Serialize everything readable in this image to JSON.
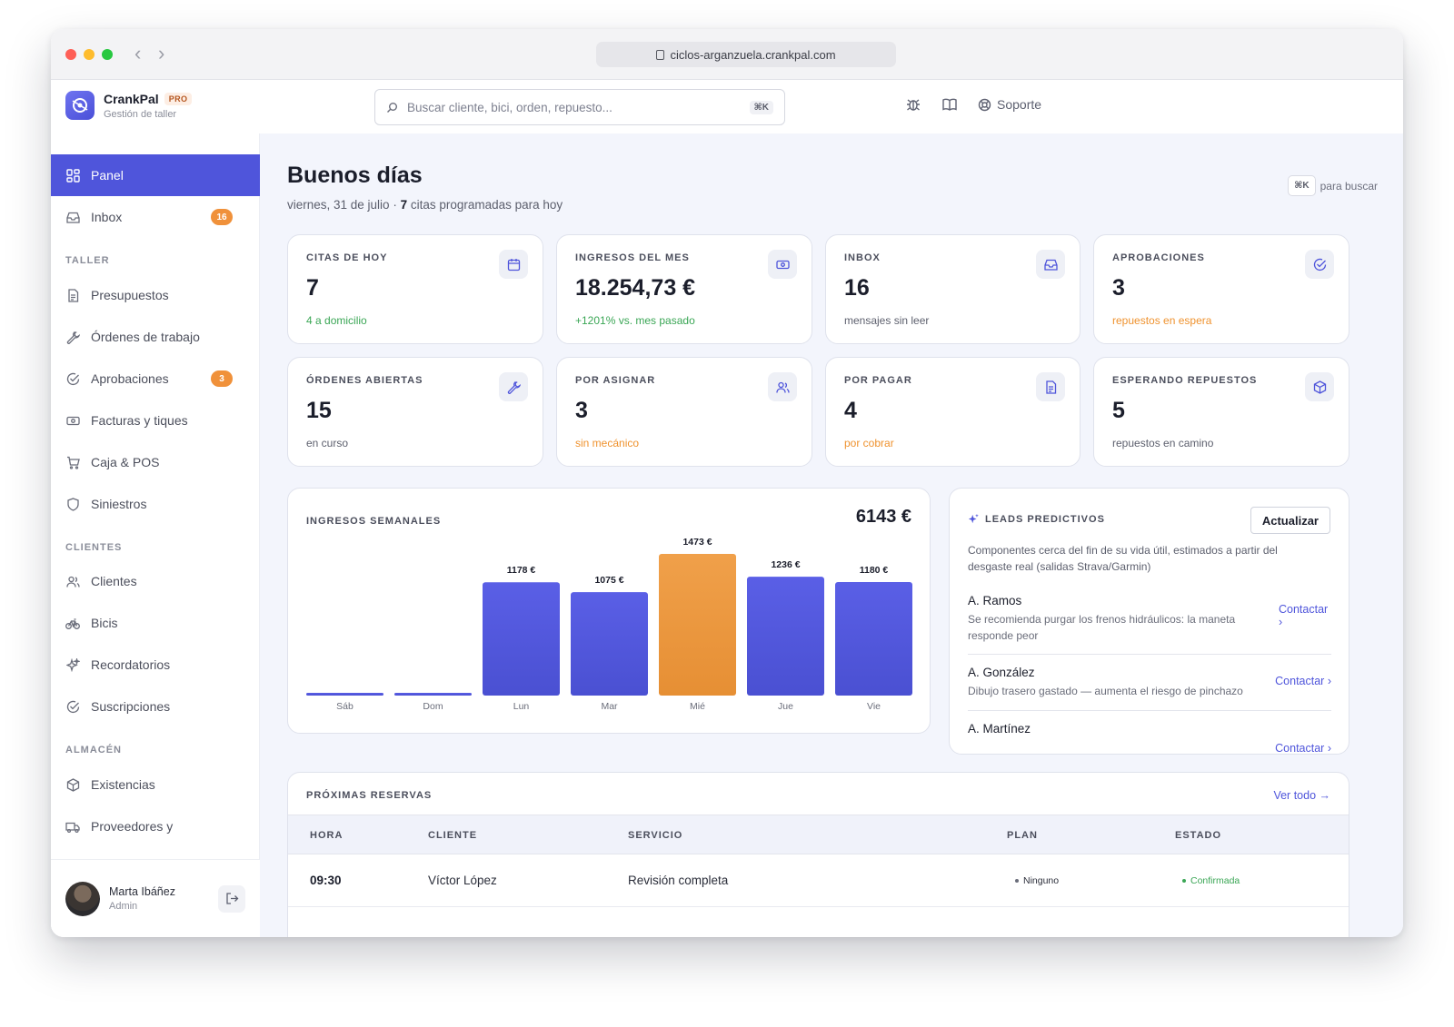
{
  "browser": {
    "url": "ciclos-arganzuela.crankpal.com"
  },
  "app": {
    "name": "CrankPal",
    "plan_badge": "PRO",
    "subtitle": "Gestión de taller",
    "search_placeholder": "Buscar cliente, bici, orden, repuesto...",
    "search_shortcut": "⌘K",
    "support_label": "Soporte"
  },
  "sidebar": {
    "top_items": [
      {
        "label": "Panel",
        "icon": "grid-icon",
        "active": true
      },
      {
        "label": "Inbox",
        "icon": "inbox-icon",
        "badge": "16"
      }
    ],
    "sections": [
      {
        "title": "TALLER",
        "items": [
          {
            "label": "Presupuestos",
            "icon": "document-icon"
          },
          {
            "label": "Órdenes de trabajo",
            "icon": "wrench-icon"
          },
          {
            "label": "Aprobaciones",
            "icon": "check-circle-icon",
            "badge": "3"
          },
          {
            "label": "Facturas y tiques",
            "icon": "banknote-icon"
          },
          {
            "label": "Caja & POS",
            "icon": "cart-icon"
          },
          {
            "label": "Siniestros",
            "icon": "shield-icon"
          }
        ]
      },
      {
        "title": "CLIENTES",
        "items": [
          {
            "label": "Clientes",
            "icon": "users-icon"
          },
          {
            "label": "Bicis",
            "icon": "bike-icon"
          },
          {
            "label": "Recordatorios",
            "icon": "sparkle-icon"
          },
          {
            "label": "Suscripciones",
            "icon": "check-circle-icon"
          }
        ]
      },
      {
        "title": "ALMACÉN",
        "items": [
          {
            "label": "Existencias",
            "icon": "box-icon"
          },
          {
            "label": "Proveedores y",
            "icon": "truck-icon"
          }
        ]
      }
    ],
    "user": {
      "name": "Marta Ibáñez",
      "role": "Admin"
    }
  },
  "dashboard": {
    "greeting": "Buenos días",
    "date": "viernes, 31 de julio · ",
    "appointments_count": "7",
    "appointments_suffix": " citas programadas para hoy",
    "search_hint_key": "⌘K",
    "search_hint_text": "para buscar",
    "stats": [
      {
        "label": "CITAS DE HOY",
        "value": "7",
        "note": "4 a domicilio",
        "tone": "green",
        "icon": "calendar-icon"
      },
      {
        "label": "INGRESOS DEL MES",
        "value": "18.254,73 €",
        "note": "+1201% vs. mes pasado",
        "tone": "green",
        "icon": "banknote-icon"
      },
      {
        "label": "INBOX",
        "value": "16",
        "note": "mensajes sin leer",
        "tone": "neutral",
        "icon": "inbox-icon"
      },
      {
        "label": "APROBACIONES",
        "value": "3",
        "note": "repuestos en espera",
        "tone": "orange",
        "icon": "check-circle-icon"
      },
      {
        "label": "ÓRDENES ABIERTAS",
        "value": "15",
        "note": "en curso",
        "tone": "neutral",
        "icon": "wrench-icon"
      },
      {
        "label": "POR ASIGNAR",
        "value": "3",
        "note": "sin mecánico",
        "tone": "orange",
        "icon": "users-icon"
      },
      {
        "label": "POR PAGAR",
        "value": "4",
        "note": "por cobrar",
        "tone": "orange",
        "icon": "document-icon"
      },
      {
        "label": "ESPERANDO REPUESTOS",
        "value": "5",
        "note": "repuestos en camino",
        "tone": "neutral",
        "icon": "box-icon"
      }
    ],
    "weekly": {
      "title": "INGRESOS SEMANALES",
      "total": "6143 €"
    },
    "leads": {
      "title": "LEADS PREDICTIVOS",
      "refresh_label": "Actualizar",
      "description": "Componentes cerca del fin de su vida útil, estimados a partir del desgaste real (salidas Strava/Garmin)",
      "items": [
        {
          "name": "A. Ramos",
          "text": "Se recomienda purgar los frenos hidráulicos: la maneta responde peor",
          "action": "Contactar ›"
        },
        {
          "name": "A. González",
          "text": "Dibujo trasero gastado — aumenta el riesgo de pinchazo",
          "action": "Contactar ›"
        },
        {
          "name": "A. Martínez",
          "text": "",
          "action": "Contactar ›"
        }
      ]
    },
    "reservations": {
      "title": "PRÓXIMAS RESERVAS",
      "view_all": "Ver todo →",
      "columns": [
        "HORA",
        "CLIENTE",
        "SERVICIO",
        "PLAN",
        "ESTADO"
      ],
      "rows": [
        {
          "time": "09:30",
          "client": "Víctor López",
          "service": "Revisión completa",
          "plan": "Ninguno",
          "status": "Confirmada"
        }
      ]
    }
  },
  "chart_data": {
    "type": "bar",
    "title": "INGRESOS SEMANALES",
    "categories": [
      "Sáb",
      "Dom",
      "Lun",
      "Mar",
      "Mié",
      "Jue",
      "Vie"
    ],
    "values": [
      0,
      0,
      1178,
      1075,
      1473,
      1236,
      1180
    ],
    "value_labels": [
      "",
      "",
      "1178 €",
      "1075 €",
      "1473 €",
      "1236 €",
      "1180 €"
    ],
    "highlight_index": 4,
    "colors": {
      "default": "#5056dc",
      "highlight": "#ee9a3f"
    },
    "ylim": [
      0,
      1473
    ],
    "grid": false,
    "legend": "none"
  },
  "colors": {
    "accent": "#4f55db",
    "warning": "#f0913a",
    "success": "#3aa655",
    "background": "#f3f5fc"
  }
}
